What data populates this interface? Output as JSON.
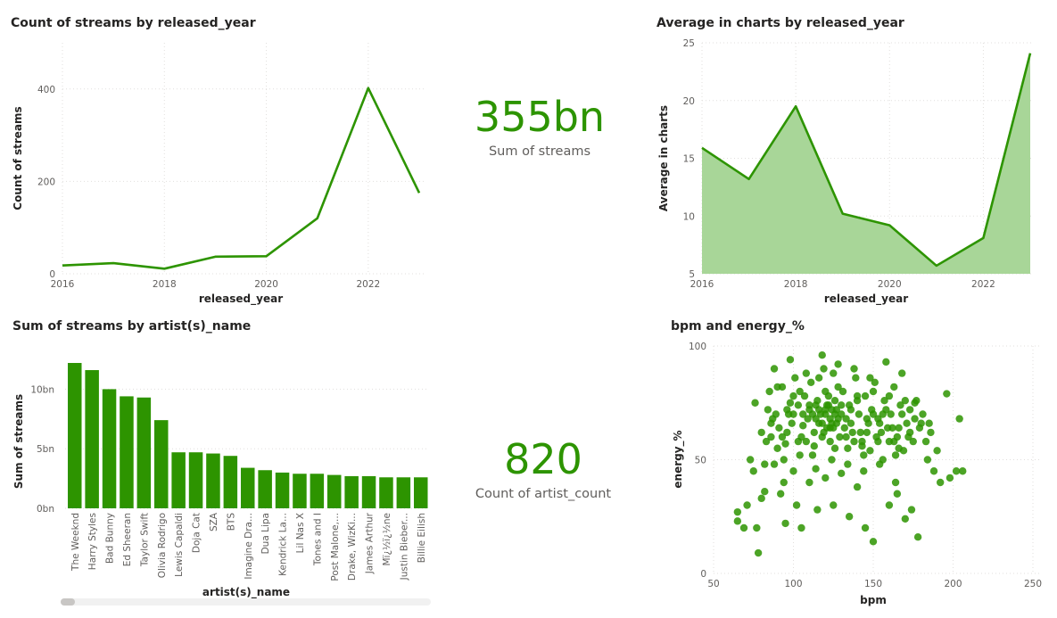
{
  "theme": {
    "accent": "#2d9400",
    "area_fill": "#a8d698",
    "grid": "#e1dfdd",
    "scatter": "#2d9400"
  },
  "cards": {
    "streams": {
      "value": "355bn",
      "label": "Sum of streams"
    },
    "artists": {
      "value": "820",
      "label": "Count of artist_count"
    }
  },
  "chart_data": [
    {
      "id": "line",
      "type": "line",
      "title": "Count of streams by released_year",
      "xlabel": "released_year",
      "ylabel": "Count of streams",
      "x": [
        2016,
        2017,
        2018,
        2019,
        2020,
        2021,
        2022,
        2023
      ],
      "values": [
        18,
        23,
        11,
        37,
        38,
        120,
        402,
        175
      ],
      "xlim": [
        2016,
        2023
      ],
      "ylim": [
        0,
        500
      ],
      "xticks": [
        2016,
        2018,
        2020,
        2022
      ],
      "yticks": [
        0,
        200,
        400
      ],
      "grid": true
    },
    {
      "id": "area",
      "type": "area",
      "title": "Average in charts by released_year",
      "xlabel": "released_year",
      "ylabel": "Average in charts",
      "x": [
        2016,
        2017,
        2018,
        2019,
        2020,
        2021,
        2022,
        2023
      ],
      "values": [
        15.9,
        13.2,
        19.5,
        10.2,
        9.2,
        5.7,
        8.1,
        24.1
      ],
      "xlim": [
        2016,
        2023
      ],
      "ylim": [
        5,
        25
      ],
      "xticks": [
        2016,
        2018,
        2020,
        2022
      ],
      "yticks": [
        5,
        10,
        15,
        20,
        25
      ],
      "grid": true
    },
    {
      "id": "bar",
      "type": "bar",
      "title": "Sum of streams by artist(s)_name",
      "xlabel": "artist(s)_name",
      "ylabel": "Sum of streams",
      "categories": [
        "The Weeknd",
        "Harry Styles",
        "Bad Bunny",
        "Ed Sheeran",
        "Taylor Swift",
        "Olivia Rodrigo",
        "Lewis Capaldi",
        "Doja Cat",
        "SZA",
        "BTS",
        "Imagine Dra...",
        "Dua Lipa",
        "Kendrick La...",
        "Lil Nas X",
        "Tones and I",
        "Post Malone,...",
        "Drake, WizKi...",
        "James Arthur",
        "Mï¿½ï¿½ne",
        "Justin Bieber...",
        "Billie Eilish"
      ],
      "values": [
        12.2,
        11.6,
        10.0,
        9.4,
        9.3,
        7.4,
        4.7,
        4.7,
        4.6,
        4.4,
        3.4,
        3.2,
        3.0,
        2.9,
        2.9,
        2.8,
        2.7,
        2.7,
        2.6,
        2.6,
        2.6
      ],
      "value_unit": "bn",
      "ylim": [
        0,
        12.5
      ],
      "yticks": [
        0,
        5,
        10
      ],
      "ytick_labels": [
        "0bn",
        "5bn",
        "10bn"
      ],
      "grid": true
    },
    {
      "id": "scatter",
      "type": "scatter",
      "title": "bpm and energy_%",
      "xlabel": "bpm",
      "ylabel": "energy_%",
      "xlim": [
        50,
        250
      ],
      "ylim": [
        0,
        100
      ],
      "xticks": [
        50,
        100,
        150,
        200,
        250
      ],
      "yticks": [
        0,
        50,
        100
      ],
      "grid": true,
      "points": [
        [
          65,
          23
        ],
        [
          65,
          27
        ],
        [
          69,
          20
        ],
        [
          71,
          30
        ],
        [
          73,
          50
        ],
        [
          75,
          45
        ],
        [
          77,
          20
        ],
        [
          78,
          9
        ],
        [
          80,
          33
        ],
        [
          82,
          36
        ],
        [
          84,
          72
        ],
        [
          86,
          60
        ],
        [
          88,
          48
        ],
        [
          90,
          55
        ],
        [
          92,
          35
        ],
        [
          94,
          40
        ],
        [
          96,
          62
        ],
        [
          98,
          75
        ],
        [
          100,
          70
        ],
        [
          102,
          30
        ],
        [
          104,
          80
        ],
        [
          106,
          65
        ],
        [
          108,
          58
        ],
        [
          110,
          74
        ],
        [
          112,
          52
        ],
        [
          114,
          68
        ],
        [
          116,
          86
        ],
        [
          118,
          60
        ],
        [
          120,
          72
        ],
        [
          122,
          78
        ],
        [
          124,
          66
        ],
        [
          126,
          55
        ],
        [
          128,
          82
        ],
        [
          130,
          70
        ],
        [
          132,
          64
        ],
        [
          134,
          48
        ],
        [
          136,
          72
        ],
        [
          138,
          58
        ],
        [
          140,
          76
        ],
        [
          142,
          62
        ],
        [
          144,
          45
        ],
        [
          146,
          68
        ],
        [
          148,
          54
        ],
        [
          150,
          70
        ],
        [
          152,
          60
        ],
        [
          154,
          66
        ],
        [
          156,
          50
        ],
        [
          158,
          72
        ],
        [
          160,
          58
        ],
        [
          162,
          64
        ],
        [
          164,
          40
        ],
        [
          166,
          55
        ],
        [
          168,
          70
        ],
        [
          170,
          24
        ],
        [
          172,
          60
        ],
        [
          174,
          28
        ],
        [
          176,
          75
        ],
        [
          178,
          16
        ],
        [
          180,
          66
        ],
        [
          184,
          50
        ],
        [
          186,
          62
        ],
        [
          188,
          45
        ],
        [
          190,
          54
        ],
        [
          192,
          40
        ],
        [
          196,
          79
        ],
        [
          198,
          42
        ],
        [
          202,
          45
        ],
        [
          204,
          68
        ],
        [
          206,
          45
        ],
        [
          76,
          75
        ],
        [
          80,
          62
        ],
        [
          82,
          48
        ],
        [
          85,
          80
        ],
        [
          87,
          68
        ],
        [
          89,
          70
        ],
        [
          91,
          64
        ],
        [
          93,
          82
        ],
        [
          95,
          57
        ],
        [
          97,
          70
        ],
        [
          99,
          66
        ],
        [
          101,
          86
        ],
        [
          103,
          74
        ],
        [
          105,
          60
        ],
        [
          107,
          78
        ],
        [
          109,
          68
        ],
        [
          111,
          84
        ],
        [
          113,
          62
        ],
        [
          115,
          76
        ],
        [
          117,
          70
        ],
        [
          119,
          90
        ],
        [
          121,
          74
        ],
        [
          123,
          64
        ],
        [
          125,
          88
        ],
        [
          127,
          72
        ],
        [
          129,
          60
        ],
        [
          131,
          80
        ],
        [
          133,
          68
        ],
        [
          135,
          74
        ],
        [
          137,
          62
        ],
        [
          139,
          86
        ],
        [
          141,
          70
        ],
        [
          143,
          56
        ],
        [
          145,
          78
        ],
        [
          147,
          66
        ],
        [
          149,
          72
        ],
        [
          151,
          84
        ],
        [
          153,
          68
        ],
        [
          155,
          62
        ],
        [
          157,
          76
        ],
        [
          159,
          64
        ],
        [
          161,
          70
        ],
        [
          163,
          82
        ],
        [
          165,
          60
        ],
        [
          167,
          74
        ],
        [
          169,
          54
        ],
        [
          171,
          66
        ],
        [
          173,
          72
        ],
        [
          175,
          58
        ],
        [
          177,
          76
        ],
        [
          179,
          64
        ],
        [
          181,
          70
        ],
        [
          183,
          58
        ],
        [
          185,
          66
        ],
        [
          95,
          22
        ],
        [
          105,
          20
        ],
        [
          115,
          28
        ],
        [
          125,
          30
        ],
        [
          135,
          25
        ],
        [
          145,
          20
        ],
        [
          150,
          14
        ],
        [
          160,
          30
        ],
        [
          165,
          35
        ],
        [
          100,
          45
        ],
        [
          110,
          40
        ],
        [
          120,
          42
        ],
        [
          130,
          44
        ],
        [
          140,
          38
        ],
        [
          88,
          90
        ],
        [
          98,
          94
        ],
        [
          108,
          88
        ],
        [
          118,
          96
        ],
        [
          128,
          92
        ],
        [
          138,
          90
        ],
        [
          148,
          86
        ],
        [
          158,
          93
        ],
        [
          168,
          88
        ],
        [
          94,
          50
        ],
        [
          104,
          52
        ],
        [
          114,
          46
        ],
        [
          124,
          50
        ],
        [
          134,
          55
        ],
        [
          144,
          52
        ],
        [
          154,
          48
        ],
        [
          164,
          52
        ],
        [
          90,
          82
        ],
        [
          100,
          78
        ],
        [
          110,
          72
        ],
        [
          120,
          80
        ],
        [
          130,
          74
        ],
        [
          140,
          78
        ],
        [
          150,
          80
        ],
        [
          160,
          78
        ],
        [
          170,
          76
        ],
        [
          86,
          66
        ],
        [
          96,
          72
        ],
        [
          106,
          70
        ],
        [
          116,
          66
        ],
        [
          126,
          70
        ],
        [
          136,
          66
        ],
        [
          146,
          62
        ],
        [
          156,
          70
        ],
        [
          166,
          64
        ],
        [
          176,
          68
        ],
        [
          83,
          58
        ],
        [
          93,
          60
        ],
        [
          103,
          58
        ],
        [
          113,
          56
        ],
        [
          123,
          58
        ],
        [
          133,
          60
        ],
        [
          143,
          58
        ],
        [
          153,
          58
        ],
        [
          163,
          58
        ],
        [
          173,
          62
        ],
        [
          118,
          66
        ],
        [
          120,
          70
        ],
        [
          122,
          74
        ],
        [
          124,
          72
        ],
        [
          126,
          76
        ],
        [
          128,
          68
        ],
        [
          116,
          72
        ],
        [
          114,
          74
        ],
        [
          112,
          70
        ],
        [
          119,
          62
        ],
        [
          121,
          64
        ],
        [
          123,
          68
        ],
        [
          125,
          64
        ],
        [
          127,
          66
        ]
      ]
    }
  ]
}
